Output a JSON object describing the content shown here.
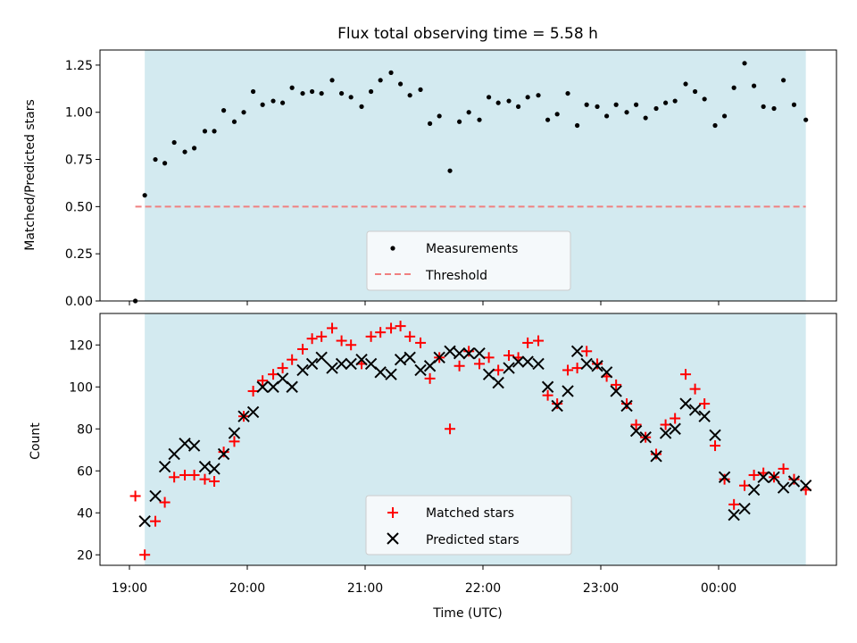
{
  "figure": {
    "title": "Flux total observing time = 5.58 h",
    "xlabel": "Time (UTC)",
    "x_ticks": [
      "19:00",
      "20:00",
      "21:00",
      "22:00",
      "23:00",
      "00:00"
    ]
  },
  "colors": {
    "band": "#d3eaf0",
    "measurement": "#000000",
    "threshold": "#f08080",
    "matched": "#ff0000",
    "predicted": "#000000"
  },
  "chart_data": [
    {
      "type": "scatter",
      "ylabel": "Matched/Predicted stars",
      "x_unit": "hours since 19:00 UTC",
      "xlim": [
        -0.25,
        6.0
      ],
      "ylim": [
        0.0,
        1.33
      ],
      "y_ticks": [
        "0.00",
        "0.25",
        "0.50",
        "0.75",
        "1.00",
        "1.25"
      ],
      "observing_band": [
        0.13,
        5.74
      ],
      "threshold": {
        "y": 0.5,
        "x": [
          0.05,
          5.74
        ]
      },
      "legend": {
        "placement": "lower center",
        "entries": [
          "Measurements",
          "Threshold"
        ]
      },
      "series": [
        {
          "name": "Measurements",
          "x": [
            0.05,
            0.13,
            0.22,
            0.3,
            0.38,
            0.47,
            0.55,
            0.64,
            0.72,
            0.8,
            0.89,
            0.97,
            1.05,
            1.13,
            1.22,
            1.3,
            1.38,
            1.47,
            1.55,
            1.63,
            1.72,
            1.8,
            1.88,
            1.97,
            2.05,
            2.13,
            2.22,
            2.3,
            2.38,
            2.47,
            2.55,
            2.63,
            2.72,
            2.8,
            2.88,
            2.97,
            3.05,
            3.13,
            3.22,
            3.3,
            3.38,
            3.47,
            3.55,
            3.63,
            3.72,
            3.8,
            3.88,
            3.97,
            4.05,
            4.13,
            4.22,
            4.3,
            4.38,
            4.47,
            4.55,
            4.63,
            4.72,
            4.8,
            4.88,
            4.97,
            5.05,
            5.13,
            5.22,
            5.3,
            5.38,
            5.47,
            5.55,
            5.64,
            5.74
          ],
          "y": [
            0.0,
            0.56,
            0.75,
            0.73,
            0.84,
            0.79,
            0.81,
            0.9,
            0.9,
            1.01,
            0.95,
            1.0,
            1.11,
            1.04,
            1.06,
            1.05,
            1.13,
            1.1,
            1.11,
            1.1,
            1.17,
            1.1,
            1.08,
            1.03,
            1.11,
            1.17,
            1.21,
            1.15,
            1.09,
            1.12,
            0.94,
            0.98,
            0.69,
            0.95,
            1.0,
            0.96,
            1.08,
            1.05,
            1.06,
            1.03,
            1.08,
            1.09,
            0.96,
            0.99,
            1.1,
            0.93,
            1.04,
            1.03,
            0.98,
            1.04,
            1.0,
            1.04,
            0.97,
            1.02,
            1.05,
            1.06,
            1.15,
            1.11,
            1.07,
            0.93,
            0.98,
            1.13,
            1.26,
            1.14,
            1.03,
            1.02,
            1.17,
            1.04,
            0.96
          ]
        }
      ]
    },
    {
      "type": "scatter",
      "ylabel": "Count",
      "x_unit": "hours since 19:00 UTC",
      "xlim": [
        -0.25,
        6.0
      ],
      "ylim": [
        15,
        135
      ],
      "y_ticks": [
        "20",
        "40",
        "60",
        "80",
        "100",
        "120"
      ],
      "observing_band": [
        0.13,
        5.74
      ],
      "legend": {
        "placement": "lower center",
        "entries": [
          "Matched stars",
          "Predicted stars"
        ]
      },
      "series": [
        {
          "name": "Matched stars",
          "x": [
            0.05,
            0.13,
            0.22,
            0.3,
            0.38,
            0.47,
            0.55,
            0.64,
            0.72,
            0.8,
            0.89,
            0.97,
            1.05,
            1.13,
            1.22,
            1.3,
            1.38,
            1.47,
            1.55,
            1.63,
            1.72,
            1.8,
            1.88,
            1.97,
            2.05,
            2.13,
            2.22,
            2.3,
            2.38,
            2.47,
            2.55,
            2.63,
            2.72,
            2.8,
            2.88,
            2.97,
            3.05,
            3.13,
            3.22,
            3.3,
            3.38,
            3.47,
            3.55,
            3.63,
            3.72,
            3.8,
            3.88,
            3.97,
            4.05,
            4.13,
            4.22,
            4.3,
            4.38,
            4.47,
            4.55,
            4.63,
            4.72,
            4.8,
            4.88,
            4.97,
            5.05,
            5.13,
            5.22,
            5.3,
            5.38,
            5.47,
            5.55,
            5.64,
            5.74
          ],
          "y": [
            48,
            20,
            36,
            45,
            57,
            58,
            58,
            56,
            55,
            69,
            74,
            86,
            98,
            103,
            106,
            109,
            113,
            118,
            123,
            124,
            128,
            122,
            120,
            111,
            124,
            126,
            128,
            129,
            124,
            121,
            104,
            114,
            80,
            110,
            117,
            111,
            114,
            108,
            115,
            114,
            121,
            122,
            96,
            92,
            108,
            109,
            117,
            111,
            105,
            101,
            92,
            82,
            76,
            68,
            82,
            85,
            106,
            99,
            92,
            72,
            56,
            44,
            53,
            58,
            59,
            57,
            61,
            56,
            51
          ]
        },
        {
          "name": "Predicted stars",
          "x": [
            0.13,
            0.22,
            0.3,
            0.38,
            0.47,
            0.55,
            0.64,
            0.72,
            0.8,
            0.89,
            0.97,
            1.05,
            1.13,
            1.22,
            1.3,
            1.38,
            1.47,
            1.55,
            1.63,
            1.72,
            1.8,
            1.88,
            1.97,
            2.05,
            2.13,
            2.22,
            2.3,
            2.38,
            2.47,
            2.55,
            2.63,
            2.72,
            2.8,
            2.88,
            2.97,
            3.05,
            3.13,
            3.22,
            3.3,
            3.38,
            3.47,
            3.55,
            3.63,
            3.72,
            3.8,
            3.88,
            3.97,
            4.05,
            4.13,
            4.22,
            4.3,
            4.38,
            4.47,
            4.55,
            4.63,
            4.72,
            4.8,
            4.88,
            4.97,
            5.05,
            5.13,
            5.22,
            5.3,
            5.38,
            5.47,
            5.55,
            5.64,
            5.74
          ],
          "y": [
            36,
            48,
            62,
            68,
            73,
            72,
            62,
            61,
            68,
            78,
            86,
            88,
            100,
            100,
            104,
            100,
            108,
            111,
            114,
            109,
            111,
            111,
            113,
            111,
            107,
            106,
            113,
            114,
            108,
            110,
            114,
            117,
            116,
            116,
            116,
            106,
            102,
            109,
            112,
            112,
            111,
            100,
            91,
            98,
            117,
            111,
            110,
            107,
            98,
            91,
            79,
            76,
            67,
            78,
            80,
            92,
            89,
            86,
            77,
            57,
            39,
            42,
            51,
            57,
            57,
            52,
            55,
            53
          ]
        }
      ]
    }
  ]
}
